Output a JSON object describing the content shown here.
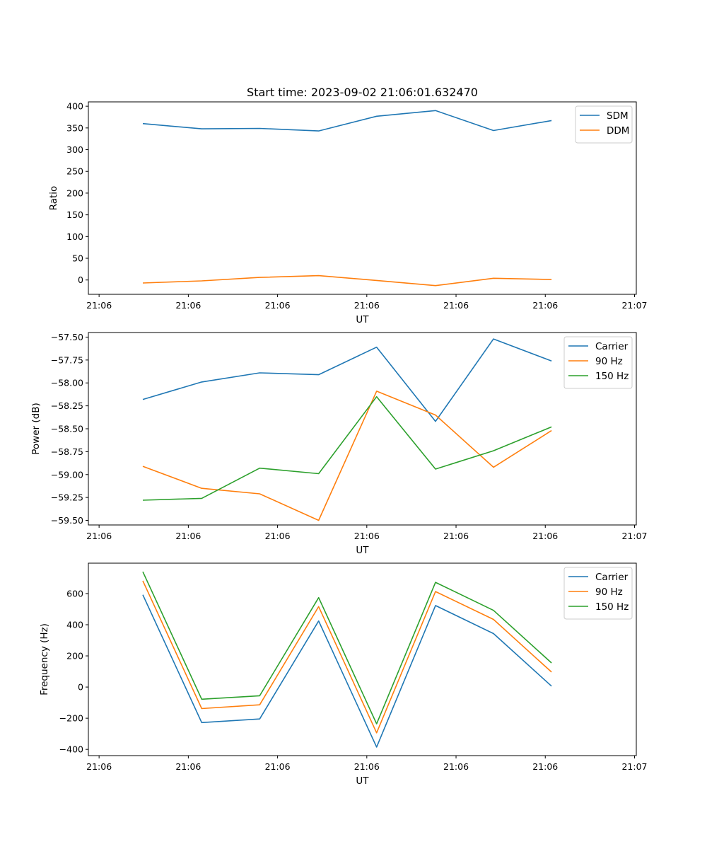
{
  "figure": {
    "title": "Start time: 2023-09-02 21:06:01.632470"
  },
  "chart_data": [
    {
      "type": "line",
      "title": "Start time: 2023-09-02 21:06:01.632470",
      "xlabel": "UT",
      "ylabel": "Ratio",
      "x_tick_labels": [
        "21:06",
        "21:06",
        "21:06",
        "21:06",
        "21:06",
        "21:06",
        "21:07"
      ],
      "x_tick_values": [
        0,
        1,
        2,
        3,
        4,
        5,
        6
      ],
      "xlim": [
        -0.12,
        6.02
      ],
      "x": [
        0.49,
        1.15,
        1.8,
        2.46,
        3.11,
        3.77,
        4.42,
        5.07
      ],
      "ylim": [
        -33,
        410
      ],
      "y_ticks": [
        0,
        50,
        100,
        150,
        200,
        250,
        300,
        350,
        400
      ],
      "y_tick_labels": [
        "0",
        "50",
        "100",
        "150",
        "200",
        "250",
        "300",
        "350",
        "400"
      ],
      "legend": "top-right",
      "series": [
        {
          "name": "SDM",
          "color": "#1f77b4",
          "values": [
            360,
            348,
            349,
            343,
            377,
            390,
            344,
            367
          ]
        },
        {
          "name": "DDM",
          "color": "#ff7f0e",
          "values": [
            -7,
            -2,
            6,
            10,
            -1,
            -13,
            4,
            1
          ]
        }
      ]
    },
    {
      "type": "line",
      "title": "",
      "xlabel": "UT",
      "ylabel": "Power (dB)",
      "x_tick_labels": [
        "21:06",
        "21:06",
        "21:06",
        "21:06",
        "21:06",
        "21:06",
        "21:07"
      ],
      "x_tick_values": [
        0,
        1,
        2,
        3,
        4,
        5,
        6
      ],
      "xlim": [
        -0.12,
        6.02
      ],
      "x": [
        0.49,
        1.15,
        1.8,
        2.46,
        3.11,
        3.77,
        4.42,
        5.07
      ],
      "ylim": [
        -59.55,
        -57.45
      ],
      "y_ticks": [
        -59.5,
        -59.25,
        -59.0,
        -58.75,
        -58.5,
        -58.25,
        -58.0,
        -57.75,
        -57.5
      ],
      "y_tick_labels": [
        "−59.50",
        "−59.25",
        "−59.00",
        "−58.75",
        "−58.50",
        "−58.25",
        "−58.00",
        "−57.75",
        "−57.50"
      ],
      "legend": "top-right",
      "series": [
        {
          "name": "Carrier",
          "color": "#1f77b4",
          "values": [
            -58.18,
            -57.99,
            -57.89,
            -57.91,
            -57.61,
            -58.42,
            -57.52,
            -57.76
          ]
        },
        {
          "name": "90 Hz",
          "color": "#ff7f0e",
          "values": [
            -58.91,
            -59.15,
            -59.21,
            -59.5,
            -58.09,
            -58.35,
            -58.92,
            -58.52
          ]
        },
        {
          "name": "150 Hz",
          "color": "#2ca02c",
          "values": [
            -59.28,
            -59.26,
            -58.93,
            -58.99,
            -58.15,
            -58.94,
            -58.74,
            -58.48
          ]
        }
      ]
    },
    {
      "type": "line",
      "title": "",
      "xlabel": "UT",
      "ylabel": "Frequency (Hz)",
      "x_tick_labels": [
        "21:06",
        "21:06",
        "21:06",
        "21:06",
        "21:06",
        "21:06",
        "21:07"
      ],
      "x_tick_values": [
        0,
        1,
        2,
        3,
        4,
        5,
        6
      ],
      "xlim": [
        -0.12,
        6.02
      ],
      "x": [
        0.49,
        1.15,
        1.8,
        2.46,
        3.11,
        3.77,
        4.42,
        5.07
      ],
      "ylim": [
        -440,
        795
      ],
      "y_ticks": [
        -400,
        -200,
        0,
        200,
        400,
        600
      ],
      "y_tick_labels": [
        "−400",
        "−200",
        "0",
        "200",
        "400",
        "600"
      ],
      "legend": "top-right",
      "series": [
        {
          "name": "Carrier",
          "color": "#1f77b4",
          "values": [
            592,
            -228,
            -205,
            424,
            -385,
            523,
            343,
            6
          ]
        },
        {
          "name": "90 Hz",
          "color": "#ff7f0e",
          "values": [
            682,
            -138,
            -114,
            516,
            -294,
            613,
            434,
            96
          ]
        },
        {
          "name": "150 Hz",
          "color": "#2ca02c",
          "values": [
            740,
            -78,
            -56,
            574,
            -236,
            672,
            492,
            155
          ]
        }
      ]
    }
  ]
}
